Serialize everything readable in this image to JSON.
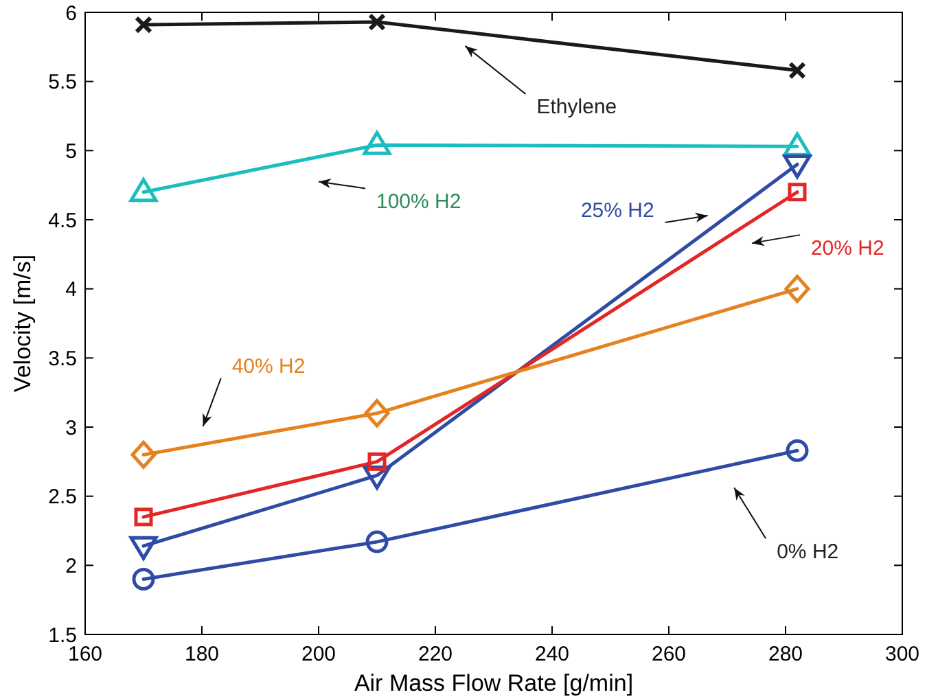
{
  "chart_data": {
    "type": "line",
    "xlabel": "Air Mass Flow Rate [g/min]",
    "ylabel": "Velocity [m/s]",
    "x": [
      170,
      210,
      282
    ],
    "xlim": [
      160,
      300
    ],
    "xticks": [
      160,
      180,
      200,
      220,
      240,
      260,
      280,
      300
    ],
    "ylim": [
      1.5,
      6
    ],
    "yticks": [
      1.5,
      2,
      2.5,
      3,
      3.5,
      4,
      4.5,
      5,
      5.5,
      6
    ],
    "grid": false,
    "line_style": "solid",
    "series": [
      {
        "color": "#1a1a1a",
        "marker": "cross",
        "values": [
          5.91,
          5.93,
          5.58
        ]
      },
      {
        "color": "#1bbdbe",
        "marker": "triangle",
        "values": [
          4.7,
          5.04,
          5.03
        ]
      },
      {
        "color": "#2e4ba5",
        "marker": "triangle-down",
        "values": [
          2.14,
          2.65,
          4.9
        ]
      },
      {
        "color": "#e32626",
        "marker": "square",
        "values": [
          2.35,
          2.75,
          4.7
        ]
      },
      {
        "color": "#e5811e",
        "marker": "diamond",
        "values": [
          2.8,
          3.1,
          4.0
        ]
      },
      {
        "color": "#2e4ba5",
        "marker": "circle",
        "values": [
          1.9,
          2.17,
          2.83
        ]
      }
    ],
    "annotations": [
      "Ethylene",
      "100% H2",
      "25% H2",
      "20% H2",
      "40% H2",
      "0% H2"
    ]
  }
}
